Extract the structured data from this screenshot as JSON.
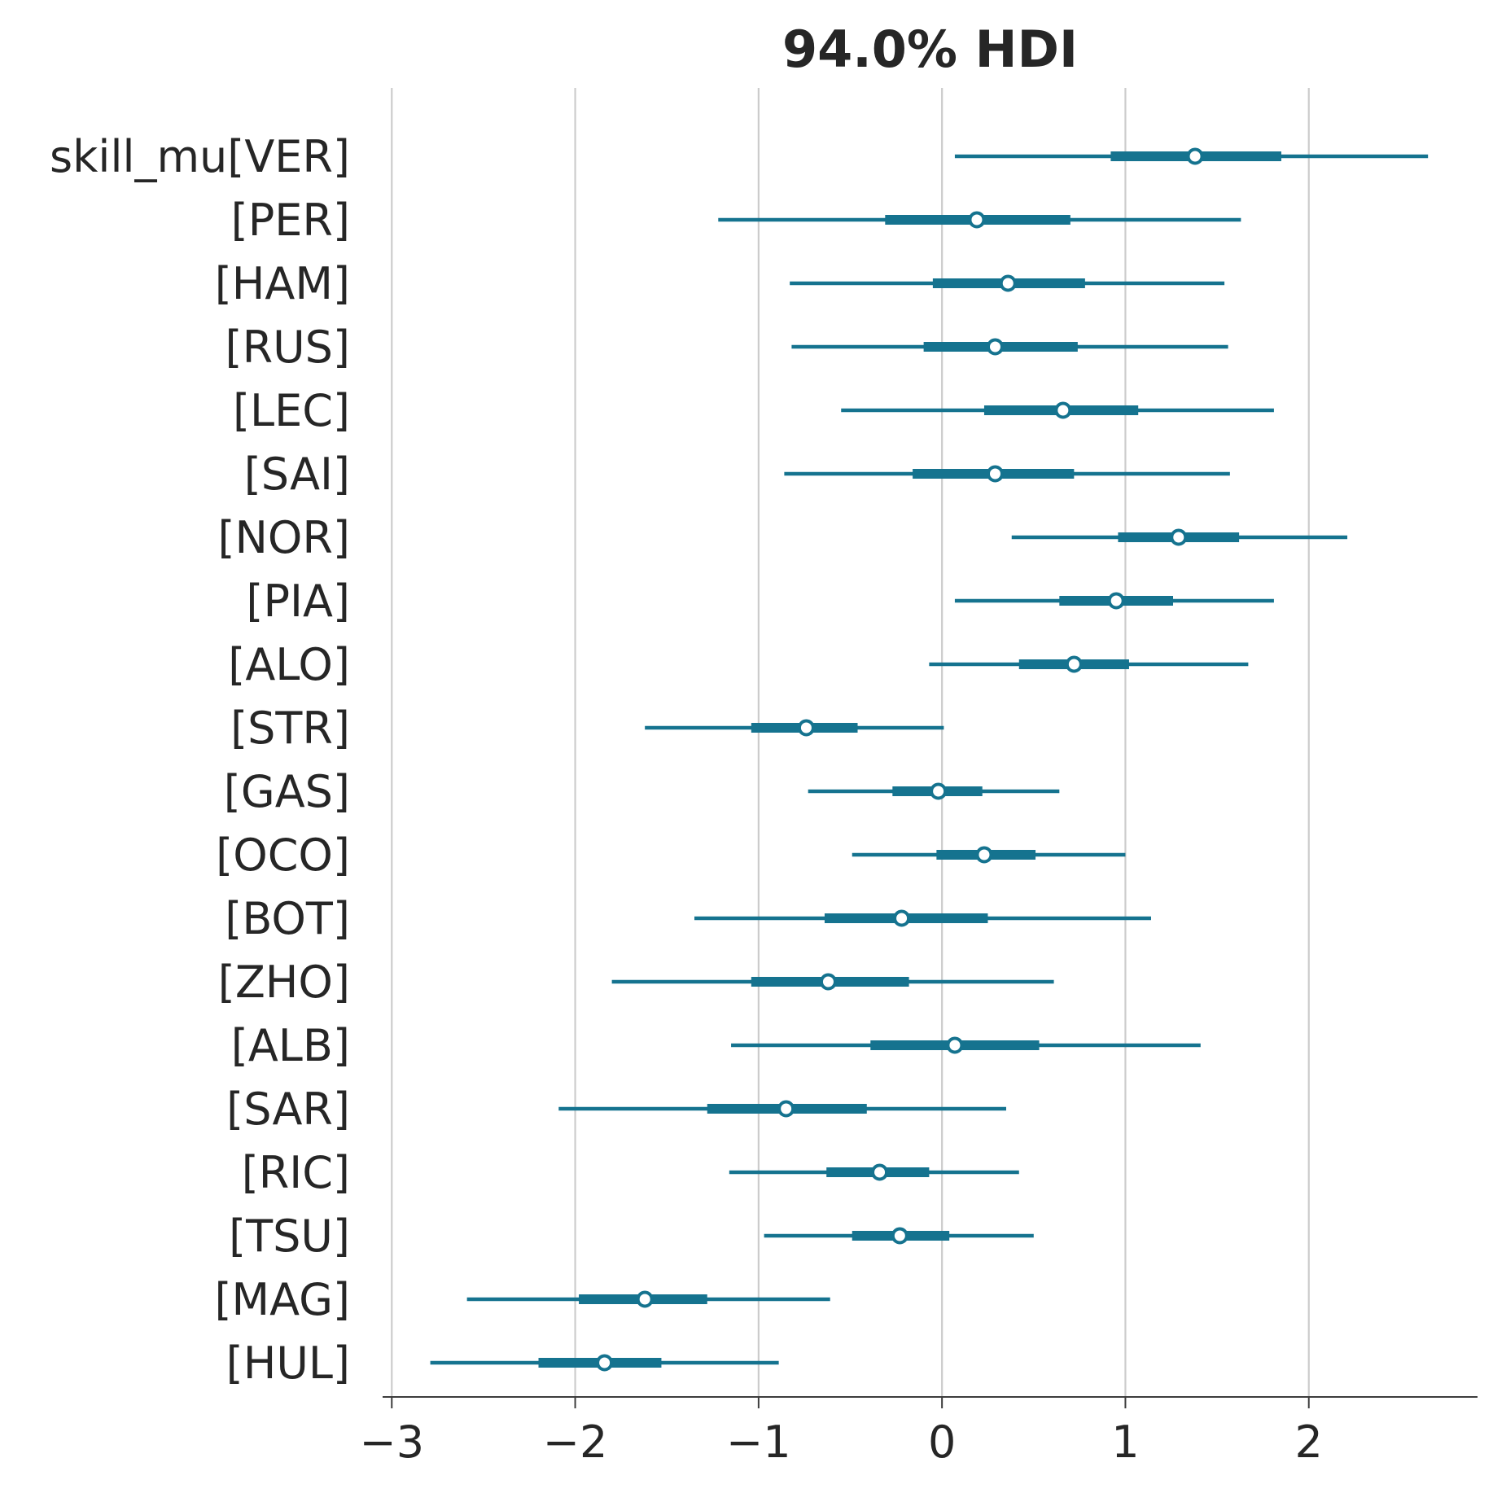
{
  "chart_data": {
    "type": "forest",
    "title": "94.0% HDI",
    "variable_prefix": "skill_mu",
    "row_labels": [
      "skill_mu[VER]",
      "[PER]",
      "[HAM]",
      "[RUS]",
      "[LEC]",
      "[SAI]",
      "[NOR]",
      "[PIA]",
      "[ALO]",
      "[STR]",
      "[GAS]",
      "[OCO]",
      "[BOT]",
      "[ZHO]",
      "[ALB]",
      "[SAR]",
      "[RIC]",
      "[TSU]",
      "[MAG]",
      "[HUL]"
    ],
    "categories": [
      "VER",
      "PER",
      "HAM",
      "RUS",
      "LEC",
      "SAI",
      "NOR",
      "PIA",
      "ALO",
      "STR",
      "GAS",
      "OCO",
      "BOT",
      "ZHO",
      "ALB",
      "SAR",
      "RIC",
      "TSU",
      "MAG",
      "HUL"
    ],
    "median": [
      1.38,
      0.19,
      0.36,
      0.29,
      0.66,
      0.29,
      1.29,
      0.95,
      0.72,
      -0.74,
      -0.02,
      0.23,
      -0.22,
      -0.62,
      0.07,
      -0.85,
      -0.34,
      -0.23,
      -1.62,
      -1.84
    ],
    "iqr_low": [
      0.92,
      -0.31,
      -0.05,
      -0.1,
      0.23,
      -0.16,
      0.96,
      0.64,
      0.42,
      -1.04,
      -0.27,
      -0.03,
      -0.64,
      -1.04,
      -0.39,
      -1.28,
      -0.63,
      -0.49,
      -1.98,
      -2.2
    ],
    "iqr_high": [
      1.85,
      0.7,
      0.78,
      0.74,
      1.07,
      0.72,
      1.62,
      1.26,
      1.02,
      -0.46,
      0.22,
      0.51,
      0.25,
      -0.18,
      0.53,
      -0.41,
      -0.07,
      0.04,
      -1.28,
      -1.53
    ],
    "hdi_low": [
      0.07,
      -1.22,
      -0.83,
      -0.82,
      -0.55,
      -0.86,
      0.38,
      0.07,
      -0.07,
      -1.62,
      -0.73,
      -0.49,
      -1.35,
      -1.8,
      -1.15,
      -2.09,
      -1.16,
      -0.97,
      -2.59,
      -2.79
    ],
    "hdi_high": [
      2.65,
      1.63,
      1.54,
      1.56,
      1.81,
      1.57,
      2.21,
      1.81,
      1.67,
      0.01,
      0.64,
      1.0,
      1.14,
      0.61,
      1.41,
      0.35,
      0.42,
      0.5,
      -0.61,
      -0.89
    ],
    "xlim": [
      -3.05,
      2.92
    ],
    "xticks": [
      -3,
      -2,
      -1,
      0,
      1,
      2
    ],
    "xtick_labels": [
      "−3",
      "−2",
      "−1",
      "0",
      "1",
      "2"
    ],
    "grid": "vertical",
    "color": "#15738f"
  }
}
